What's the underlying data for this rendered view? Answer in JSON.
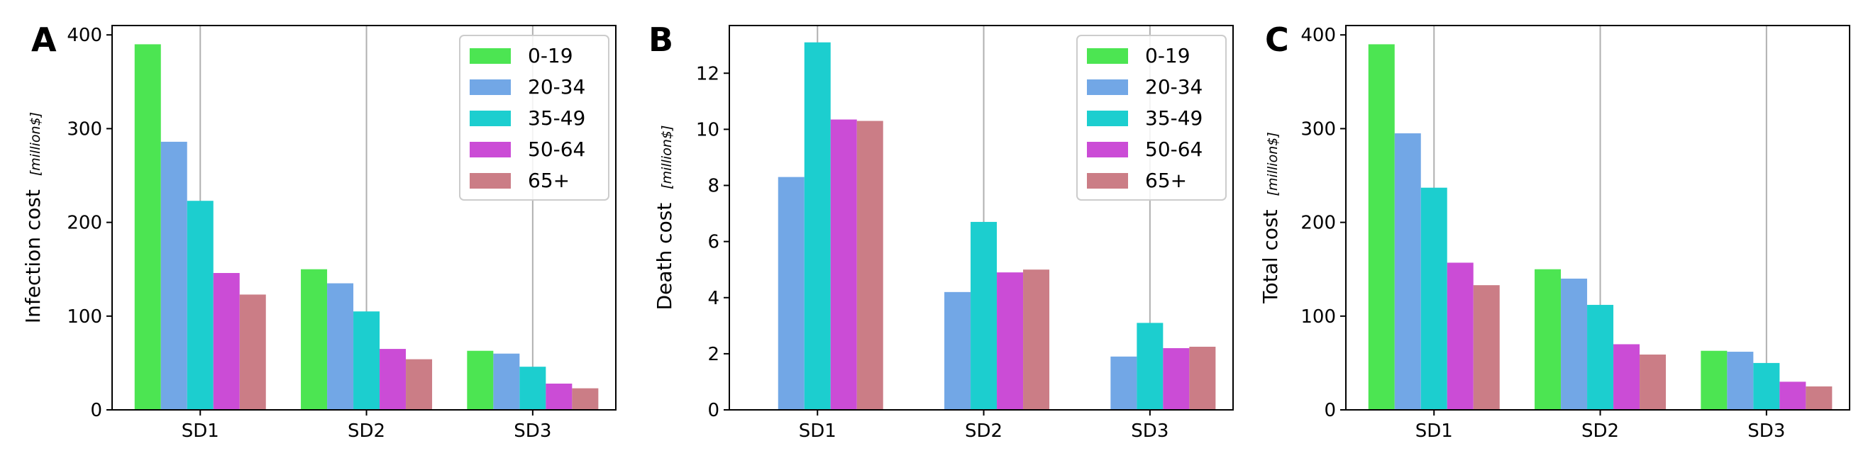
{
  "chart_data": [
    {
      "panel_label": "A",
      "type": "bar",
      "categories": [
        "SD1",
        "SD2",
        "SD3"
      ],
      "ylabel": "Infection cost",
      "ylabel_unit": "[million$]",
      "ylim": [
        0,
        410
      ],
      "yticks": [
        0,
        100,
        200,
        300,
        400
      ],
      "grid": "vertical at categories",
      "legend": "top-right",
      "series": [
        {
          "name": "0-19",
          "color": "#4ce552",
          "values": [
            390,
            150,
            63
          ]
        },
        {
          "name": "20-34",
          "color": "#72a7e6",
          "values": [
            286,
            135,
            60
          ]
        },
        {
          "name": "35-49",
          "color": "#1ccecf",
          "values": [
            223,
            105,
            46
          ]
        },
        {
          "name": "50-64",
          "color": "#cb4cd6",
          "values": [
            146,
            65,
            28
          ]
        },
        {
          "name": "65+",
          "color": "#cb7d86",
          "values": [
            123,
            54,
            23
          ]
        }
      ]
    },
    {
      "panel_label": "B",
      "type": "bar",
      "categories": [
        "SD1",
        "SD2",
        "SD3"
      ],
      "ylabel": "Death cost",
      "ylabel_unit": "[million$]",
      "ylim": [
        0,
        13.7
      ],
      "yticks": [
        0,
        2,
        4,
        6,
        8,
        10,
        12
      ],
      "grid": "vertical at categories",
      "legend": "top-right",
      "series": [
        {
          "name": "0-19",
          "color": "#4ce552",
          "values": [
            0,
            0,
            0
          ]
        },
        {
          "name": "20-34",
          "color": "#72a7e6",
          "values": [
            8.3,
            4.2,
            1.9
          ]
        },
        {
          "name": "35-49",
          "color": "#1ccecf",
          "values": [
            13.1,
            6.7,
            3.1
          ]
        },
        {
          "name": "50-64",
          "color": "#cb4cd6",
          "values": [
            10.35,
            4.9,
            2.2
          ]
        },
        {
          "name": "65+",
          "color": "#cb7d86",
          "values": [
            10.3,
            5.0,
            2.25
          ]
        }
      ]
    },
    {
      "panel_label": "C",
      "type": "bar",
      "categories": [
        "SD1",
        "SD2",
        "SD3"
      ],
      "ylabel": "Total cost",
      "ylabel_unit": "[million$]",
      "ylim": [
        0,
        410
      ],
      "yticks": [
        0,
        100,
        200,
        300,
        400
      ],
      "grid": "vertical at categories",
      "legend": "none",
      "series": [
        {
          "name": "0-19",
          "color": "#4ce552",
          "values": [
            390,
            150,
            63
          ]
        },
        {
          "name": "20-34",
          "color": "#72a7e6",
          "values": [
            295,
            140,
            62
          ]
        },
        {
          "name": "35-49",
          "color": "#1ccecf",
          "values": [
            237,
            112,
            50
          ]
        },
        {
          "name": "50-64",
          "color": "#cb4cd6",
          "values": [
            157,
            70,
            30
          ]
        },
        {
          "name": "65+",
          "color": "#cb7d86",
          "values": [
            133,
            59,
            25
          ]
        }
      ]
    }
  ]
}
